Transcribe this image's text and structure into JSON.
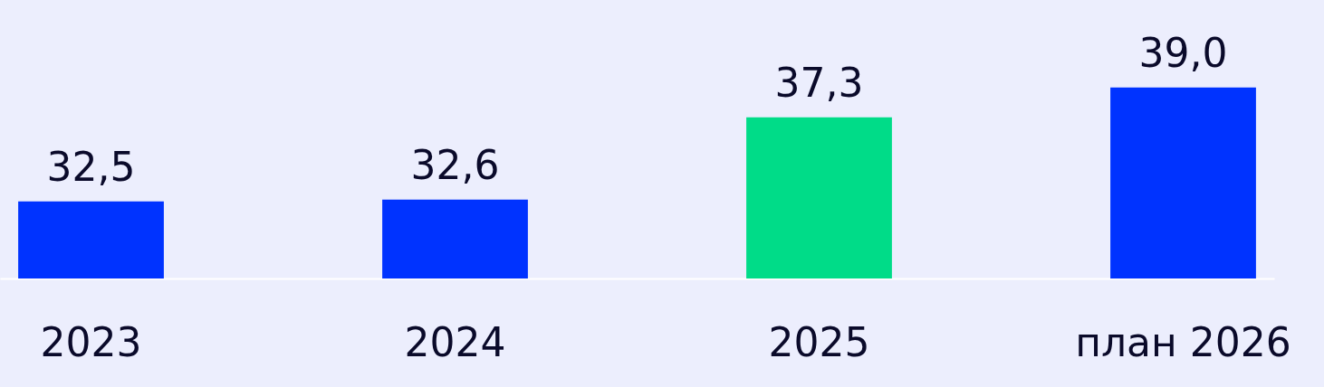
{
  "chart_data": {
    "type": "bar",
    "categories": [
      "2023",
      "2024",
      "2025",
      "план 2026"
    ],
    "values": [
      32.5,
      32.6,
      37.3,
      39.0
    ],
    "colors": [
      "#0033ff",
      "#0033ff",
      "#00dc88",
      "#0033ff"
    ],
    "value_labels": [
      "32,5",
      "32,6",
      "37,3",
      "39,0"
    ],
    "ylim": [
      28.1,
      44
    ]
  }
}
